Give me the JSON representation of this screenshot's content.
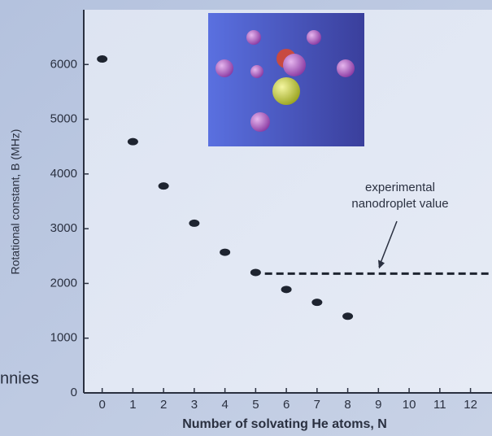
{
  "chart_data": {
    "type": "scatter",
    "x_label": "Number of solvating He atoms, N",
    "y_label": "Rotational constant, B (MHz)",
    "series": [
      {
        "name": null,
        "color": "#1e2430",
        "x": [
          0,
          1,
          2,
          3,
          4,
          5,
          6,
          7,
          8
        ],
        "values": [
          6100,
          4590,
          3780,
          3100,
          2570,
          2200,
          1890,
          1655,
          1400
        ]
      }
    ],
    "xlim": [
      -0.6,
      12.7
    ],
    "xticks": [
      0,
      1,
      2,
      3,
      4,
      5,
      6,
      7,
      8,
      9,
      10,
      11,
      12
    ],
    "ylim": [
      0,
      7000
    ],
    "yticks": [
      0,
      1000,
      2000,
      3000,
      4000,
      5000,
      6000
    ],
    "grid": false,
    "reference_line": {
      "value": 2180,
      "from": 5.3,
      "label": [
        "experimental",
        "nanodroplet value"
      ]
    },
    "side_text": "nnies"
  }
}
